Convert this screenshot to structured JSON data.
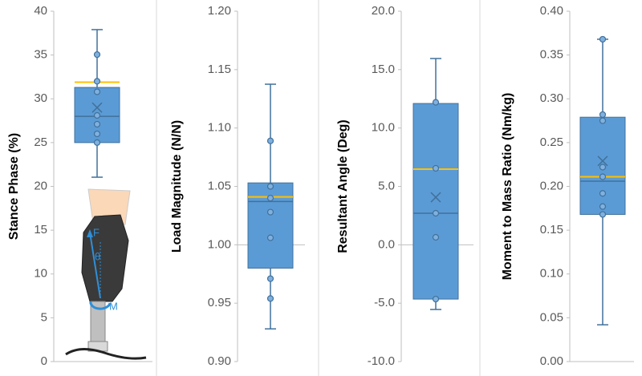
{
  "chart_data": [
    {
      "type": "box",
      "ylabel": "Stance Phase (%)",
      "ylim": [
        0,
        40
      ],
      "yticks": [
        0,
        5,
        10,
        15,
        20,
        25,
        30,
        35,
        40
      ],
      "baseline": 0,
      "color": "#5b9bd5",
      "highlight_color": "#ffc000",
      "min": 21.05,
      "q1": 25.0,
      "median": 28.0,
      "q3": 31.3,
      "max": 37.9,
      "mean": 29.0,
      "highlight": 31.9,
      "points": [
        35.05,
        32.0,
        30.8,
        28.1,
        27.1,
        26.0,
        25.0
      ],
      "annotations": [
        "F",
        "θ",
        "M"
      ]
    },
    {
      "type": "box",
      "ylabel": "Load Magnitude (N/N)",
      "ylim": [
        0.9,
        1.2
      ],
      "yticks": [
        {
          "value": 0.9,
          "label": "0.90"
        },
        0.95,
        {
          "value": 1.0,
          "label": "1.00"
        },
        1.05,
        {
          "value": 1.1,
          "label": "1.10"
        },
        1.15,
        {
          "value": 1.2,
          "label": "1.20"
        }
      ],
      "baseline": 1.0,
      "color": "#5b9bd5",
      "highlight_color": "#ffc000",
      "min": 0.928,
      "q1": 0.98,
      "median": 1.037,
      "q3": 1.053,
      "max": 1.1375,
      "highlight": 1.041,
      "points": [
        1.089,
        1.05,
        1.04,
        1.028,
        1.006,
        0.971,
        0.954
      ]
    },
    {
      "type": "box",
      "ylabel": "Resultant Angle (Deg)",
      "ylim": [
        -10,
        20
      ],
      "yticks": [
        {
          "value": -10,
          "label": "-10.0"
        },
        {
          "value": -5,
          "label": "-5.0"
        },
        {
          "value": 0,
          "label": "0.0"
        },
        {
          "value": 5,
          "label": "5.0"
        },
        {
          "value": 10,
          "label": "10.0"
        },
        {
          "value": 15,
          "label": "15.0"
        },
        {
          "value": 20,
          "label": "20.0"
        }
      ],
      "baseline": 0,
      "color": "#5b9bd5",
      "highlight_color": "#ffc000",
      "min": -5.54,
      "q1": -4.65,
      "median": 2.7,
      "q3": 12.1,
      "max": 15.95,
      "mean": 4.07,
      "highlight": 6.48,
      "points": [
        12.2,
        6.55,
        2.7,
        0.64,
        -4.65
      ]
    },
    {
      "type": "box",
      "ylabel": "Moment to Mass Ratio (Nm/kg)",
      "ylim": [
        0,
        0.4
      ],
      "yticks": [
        {
          "value": 0,
          "label": "0.00"
        },
        0.05,
        {
          "value": 0.1,
          "label": "0.10"
        },
        0.15,
        {
          "value": 0.2,
          "label": "0.20"
        },
        0.25,
        {
          "value": 0.3,
          "label": "0.30"
        },
        0.35,
        {
          "value": 0.4,
          "label": "0.40"
        }
      ],
      "baseline": 0,
      "color": "#5b9bd5",
      "highlight_color": "#ffc000",
      "min": 0.042,
      "q1": 0.168,
      "median": 0.206,
      "q3": 0.279,
      "max": 0.368,
      "mean": 0.229,
      "highlight": 0.211,
      "points": [
        0.368,
        0.282,
        0.275,
        0.222,
        0.211,
        0.192,
        0.177,
        0.168
      ]
    }
  ]
}
